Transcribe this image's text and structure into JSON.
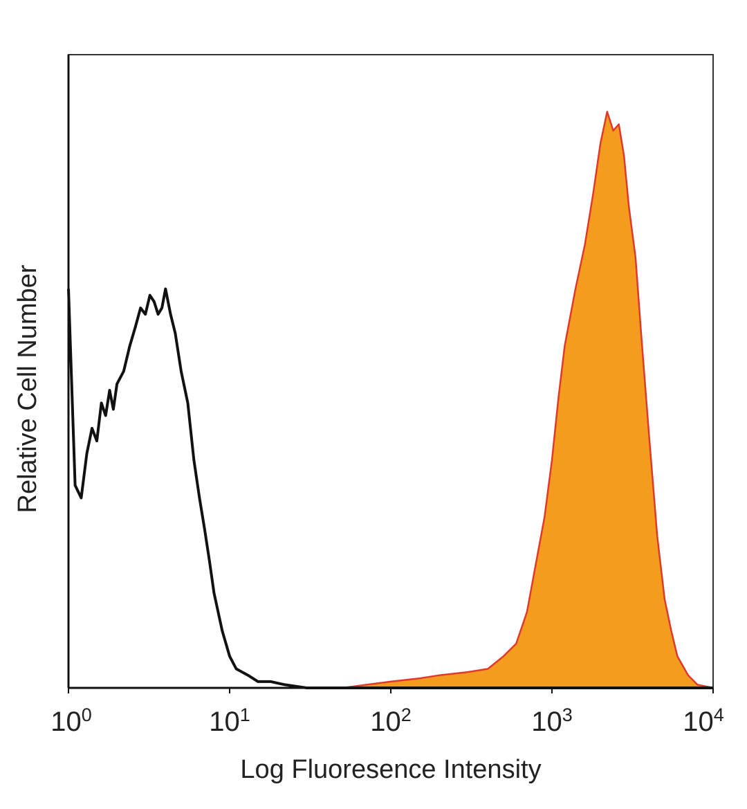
{
  "chart_data": {
    "type": "area",
    "title": "",
    "xlabel": "Log Fluoresence Intensity",
    "ylabel": "Relative Cell Number",
    "x_scale": "log",
    "xlim": [
      1,
      10000
    ],
    "ylim": [
      0,
      100
    ],
    "grid": false,
    "legend": "none",
    "x_ticks": [
      {
        "value": 1,
        "base": "10",
        "exp": "0"
      },
      {
        "value": 10,
        "base": "10",
        "exp": "1"
      },
      {
        "value": 100,
        "base": "10",
        "exp": "2"
      },
      {
        "value": 1000,
        "base": "10",
        "exp": "3"
      },
      {
        "value": 10000,
        "base": "10",
        "exp": "4"
      }
    ],
    "series": [
      {
        "style": "outline",
        "color": "#111111",
        "points": [
          [
            1.0,
            63
          ],
          [
            1.1,
            32
          ],
          [
            1.2,
            30
          ],
          [
            1.3,
            37
          ],
          [
            1.4,
            41
          ],
          [
            1.5,
            39
          ],
          [
            1.6,
            45
          ],
          [
            1.7,
            43
          ],
          [
            1.8,
            47
          ],
          [
            1.9,
            44
          ],
          [
            2.0,
            48
          ],
          [
            2.2,
            50
          ],
          [
            2.4,
            54
          ],
          [
            2.6,
            57
          ],
          [
            2.8,
            60
          ],
          [
            3.0,
            59
          ],
          [
            3.2,
            62
          ],
          [
            3.4,
            61
          ],
          [
            3.6,
            59
          ],
          [
            3.8,
            60
          ],
          [
            4.0,
            63
          ],
          [
            4.3,
            59
          ],
          [
            4.6,
            56
          ],
          [
            5.0,
            50
          ],
          [
            5.5,
            45
          ],
          [
            6.0,
            36
          ],
          [
            6.5,
            30
          ],
          [
            7.0,
            25
          ],
          [
            7.5,
            20
          ],
          [
            8.0,
            15
          ],
          [
            9.0,
            9
          ],
          [
            10.0,
            5
          ],
          [
            11.0,
            3
          ],
          [
            13.0,
            2
          ],
          [
            15.0,
            1
          ],
          [
            18.0,
            1
          ],
          [
            22.0,
            0.5
          ],
          [
            30.0,
            0
          ],
          [
            10000,
            0
          ]
        ]
      },
      {
        "style": "filled",
        "color": "#f39c1e",
        "outline_color": "#e0392b",
        "points": [
          [
            1.0,
            0
          ],
          [
            50,
            0
          ],
          [
            100,
            1
          ],
          [
            150,
            1.5
          ],
          [
            200,
            2
          ],
          [
            300,
            2.5
          ],
          [
            400,
            3
          ],
          [
            500,
            5
          ],
          [
            600,
            7
          ],
          [
            700,
            12
          ],
          [
            800,
            20
          ],
          [
            900,
            27
          ],
          [
            1000,
            36
          ],
          [
            1100,
            46
          ],
          [
            1200,
            54
          ],
          [
            1400,
            63
          ],
          [
            1600,
            70
          ],
          [
            1800,
            78
          ],
          [
            2000,
            86
          ],
          [
            2200,
            91
          ],
          [
            2400,
            88
          ],
          [
            2600,
            89
          ],
          [
            2800,
            84
          ],
          [
            3000,
            76
          ],
          [
            3300,
            68
          ],
          [
            3600,
            55
          ],
          [
            4000,
            40
          ],
          [
            4500,
            24
          ],
          [
            5000,
            14
          ],
          [
            5500,
            9
          ],
          [
            6000,
            5
          ],
          [
            7000,
            2
          ],
          [
            8000,
            0.5
          ],
          [
            10000,
            0
          ]
        ]
      }
    ]
  }
}
